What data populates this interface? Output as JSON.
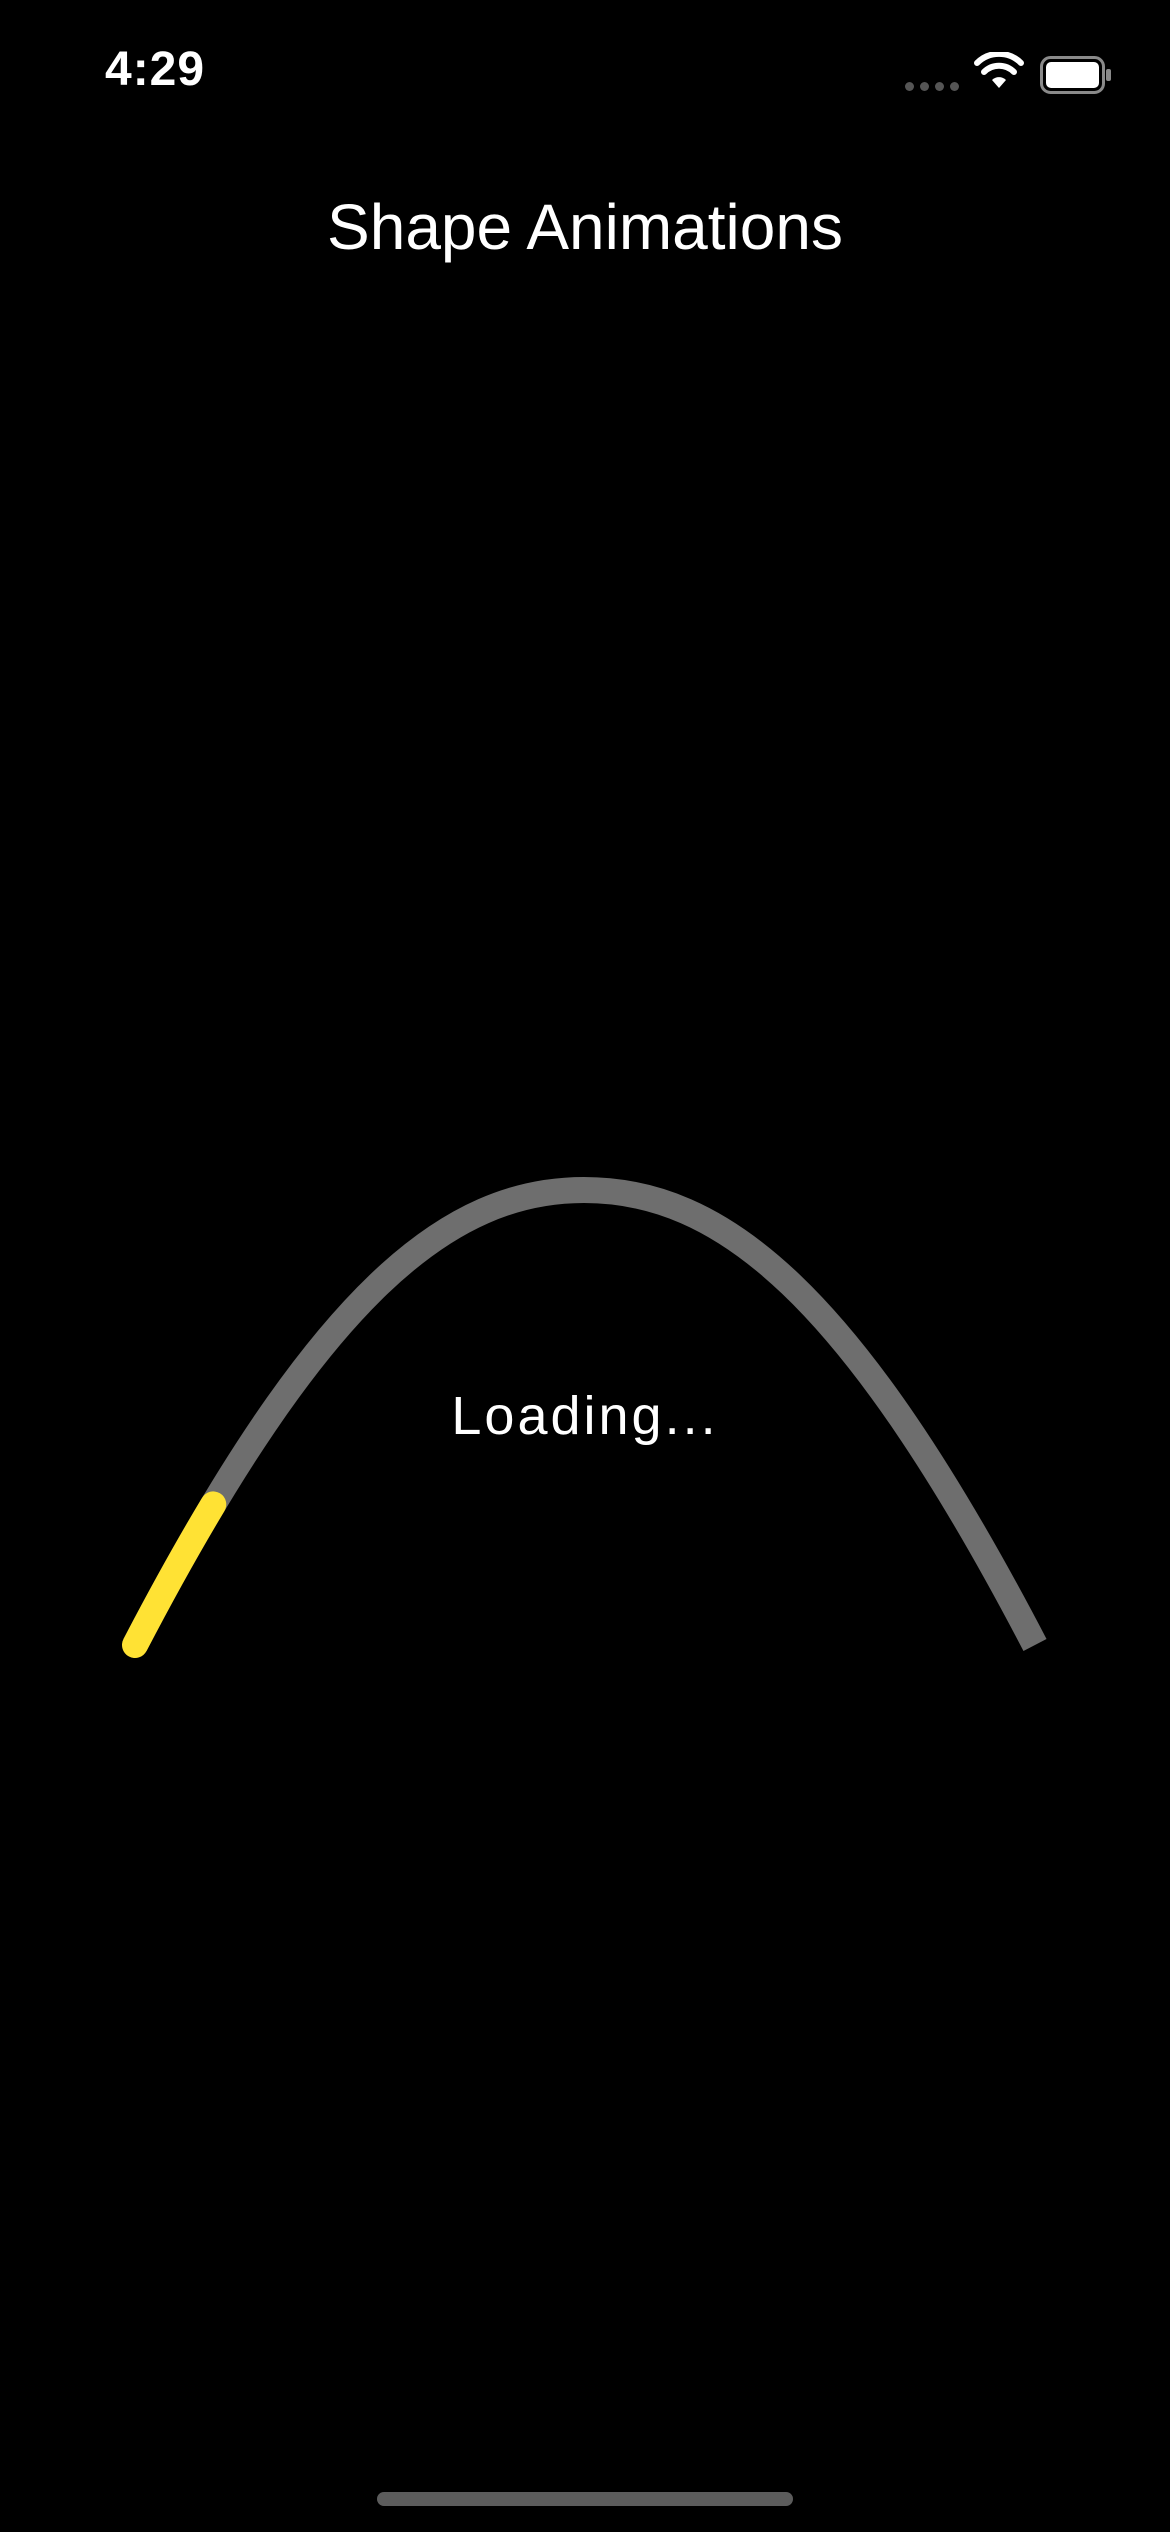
{
  "status_bar": {
    "time": "4:29",
    "signal_icon": "cellular-dots-icon",
    "wifi_icon": "wifi-icon",
    "battery_icon": "battery-full-icon"
  },
  "nav": {
    "title": "Shape Animations"
  },
  "loader": {
    "label": "Loading...",
    "progress": 0.12,
    "track_color": "#6e6e6e",
    "progress_color": "#ffe234"
  },
  "colors": {
    "background": "#000000",
    "text": "#ffffff"
  }
}
